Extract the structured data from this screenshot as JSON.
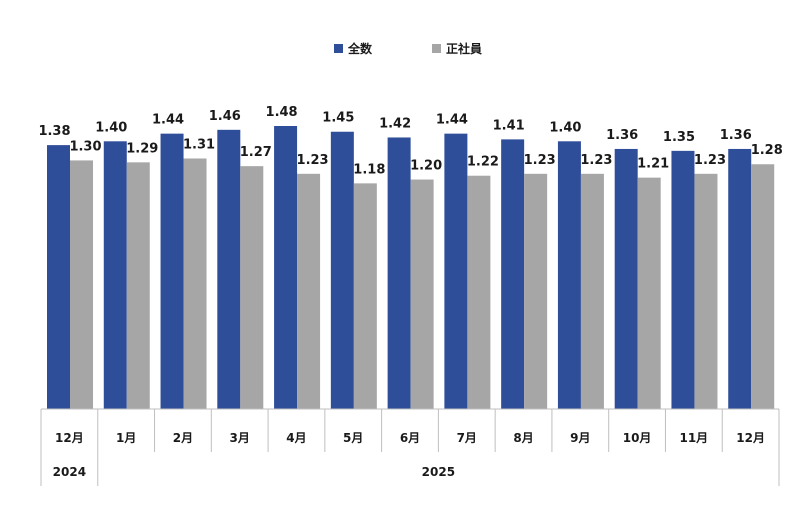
{
  "chart_data": {
    "type": "bar",
    "categories": [
      "12月",
      "1月",
      "2月",
      "3月",
      "4月",
      "5月",
      "6月",
      "7月",
      "8月",
      "9月",
      "10月",
      "11月",
      "12月"
    ],
    "year_groups": [
      {
        "label": "2024",
        "span": 1
      },
      {
        "label": "2025",
        "span": 12
      }
    ],
    "series": [
      {
        "name": "全数",
        "color": "#2e4e9a",
        "values": [
          1.38,
          1.4,
          1.44,
          1.46,
          1.48,
          1.45,
          1.42,
          1.44,
          1.41,
          1.4,
          1.36,
          1.35,
          1.36
        ],
        "labels": [
          "1.38",
          "1.40",
          "1.44",
          "1.46",
          "1.48",
          "1.45",
          "1.42",
          "1.44",
          "1.41",
          "1.40",
          "1.36",
          "1.35",
          "1.36"
        ]
      },
      {
        "name": "正社員",
        "color": "#a6a6a6",
        "values": [
          1.3,
          1.29,
          1.31,
          1.27,
          1.23,
          1.18,
          1.2,
          1.22,
          1.23,
          1.23,
          1.21,
          1.23,
          1.28
        ],
        "labels": [
          "1.30",
          "1.29",
          "1.31",
          "1.27",
          "1.23",
          "1.18",
          "1.20",
          "1.22",
          "1.23",
          "1.23",
          "1.21",
          "1.23",
          "1.28"
        ]
      }
    ],
    "ylim": [
      0,
      1.6
    ],
    "grid": false,
    "legend_position": "top-center",
    "title": "",
    "xlabel": "",
    "ylabel": ""
  }
}
